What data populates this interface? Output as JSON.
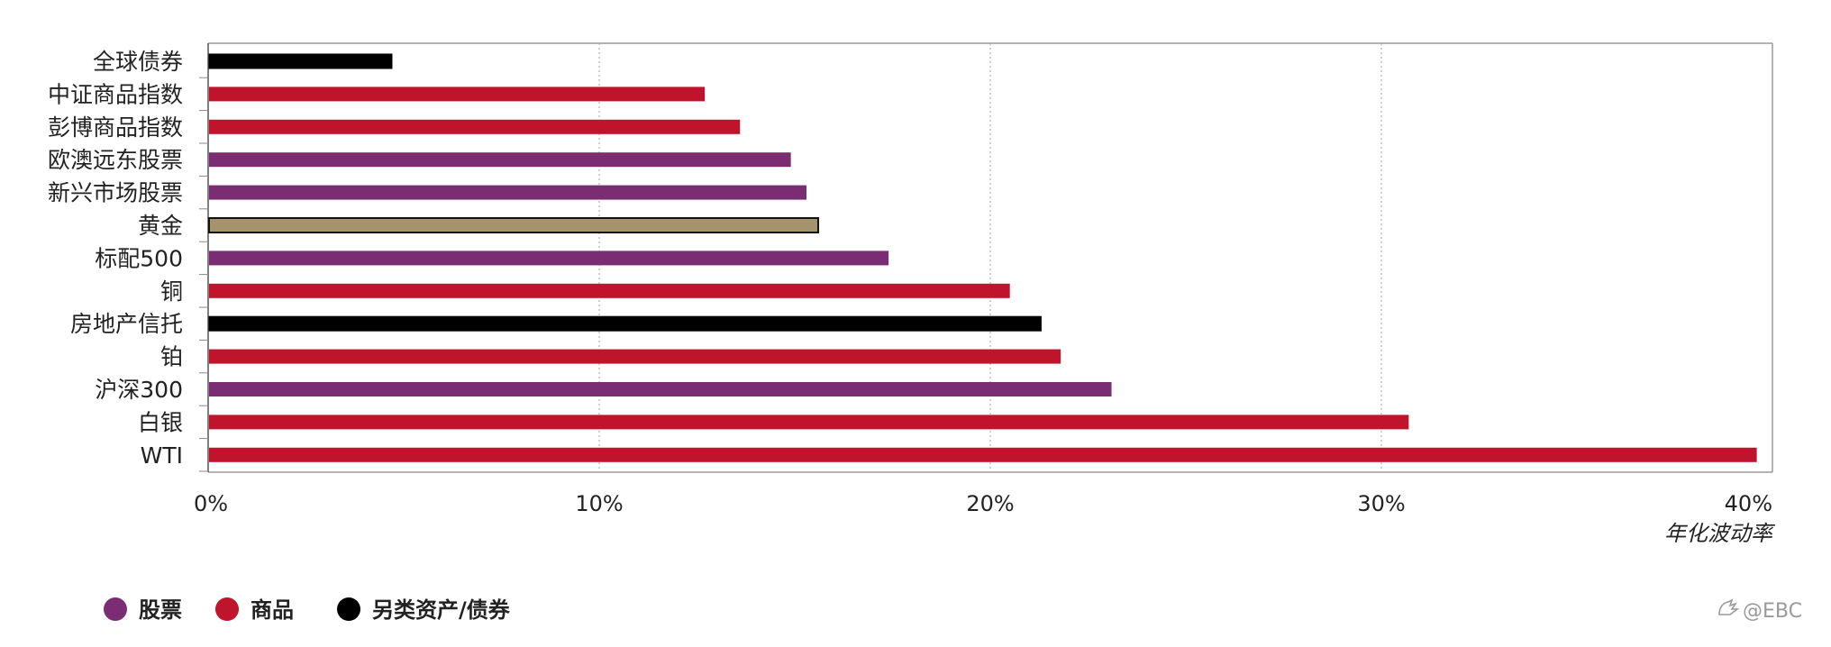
{
  "chart_data": {
    "type": "bar",
    "orientation": "horizontal",
    "categories": [
      "全球债券",
      "中证商品指数",
      "彭博商品指数",
      "欧澳远东股票",
      "新兴市场股票",
      "黄金",
      "标配500",
      "铜",
      "房地产信托",
      "铂",
      "沪深300",
      "白银",
      "WTI"
    ],
    "values": [
      4.7,
      12.7,
      13.6,
      14.9,
      15.3,
      15.6,
      17.4,
      20.5,
      21.3,
      21.8,
      23.1,
      30.7,
      39.6
    ],
    "classes": [
      "另类资产/债券",
      "商品",
      "商品",
      "股票",
      "股票",
      "黄金",
      "股票",
      "商品",
      "另类资产/债券",
      "商品",
      "股票",
      "商品",
      "商品"
    ],
    "xlabel": "年化波动率",
    "xlim": [
      0,
      40
    ],
    "xticks": [
      0,
      10,
      20,
      30,
      40
    ],
    "xtick_labels": [
      "0%",
      "10%",
      "20%",
      "30%",
      "40%"
    ],
    "grid": "vertical dotted",
    "legend_position": "bottom-left",
    "legend": [
      {
        "label": "股票",
        "color": "#7b2d74"
      },
      {
        "label": "商品",
        "color": "#c0142c"
      },
      {
        "label": "另类资产/债券",
        "color": "#000000"
      }
    ],
    "colors": {
      "股票": "#7b2d74",
      "商品": "#c0142c",
      "另类资产/债券": "#000000",
      "黄金": "#a5936b"
    }
  },
  "watermark": {
    "text": "@EBC",
    "icon": "hand-icon"
  }
}
